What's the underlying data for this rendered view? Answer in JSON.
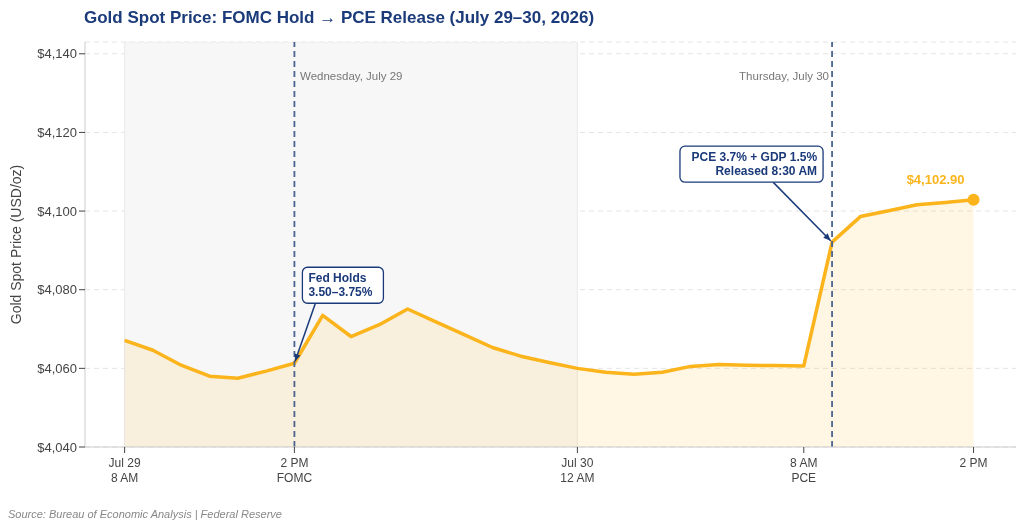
{
  "chart_data": {
    "type": "area",
    "title": "Gold Spot Price: FOMC Hold → PCE Release (July 29–30, 2026)",
    "ylabel": "Gold Spot Price (USD/oz)",
    "x": [
      "2026-07-29T08:00",
      "2026-07-29T09:00",
      "2026-07-29T10:00",
      "2026-07-29T11:00",
      "2026-07-29T12:00",
      "2026-07-29T13:00",
      "2026-07-29T14:00",
      "2026-07-29T15:00",
      "2026-07-29T16:00",
      "2026-07-29T17:00",
      "2026-07-29T18:00",
      "2026-07-29T19:00",
      "2026-07-29T20:00",
      "2026-07-29T21:00",
      "2026-07-29T22:00",
      "2026-07-29T23:00",
      "2026-07-30T00:00",
      "2026-07-30T01:00",
      "2026-07-30T02:00",
      "2026-07-30T03:00",
      "2026-07-30T04:00",
      "2026-07-30T05:00",
      "2026-07-30T06:00",
      "2026-07-30T07:00",
      "2026-07-30T08:00",
      "2026-07-30T09:00",
      "2026-07-30T10:00",
      "2026-07-30T11:00",
      "2026-07-30T12:00",
      "2026-07-30T13:00",
      "2026-07-30T14:00"
    ],
    "series": [
      {
        "color": "#fbb41c",
        "values": [
          4067.1,
          4064.6,
          4060.8,
          4058.0,
          4057.5,
          4059.3,
          4061.3,
          4073.5,
          4068.1,
          4071.1,
          4075.1,
          4071.8,
          4068.6,
          4065.3,
          4063.1,
          4061.5,
          4060.0,
          4059.0,
          4058.5,
          4059.0,
          4060.5,
          4061.0,
          4060.8,
          4060.7,
          4060.6,
          4092.1,
          4098.6,
          4100.1,
          4101.6,
          4102.2,
          4102.9
        ],
        "value_labels": [
          null,
          null,
          null,
          null,
          null,
          null,
          null,
          null,
          null,
          null,
          null,
          null,
          null,
          null,
          null,
          null,
          null,
          null,
          null,
          null,
          null,
          null,
          null,
          null,
          null,
          null,
          null,
          null,
          null,
          null,
          "$4,102.90"
        ]
      }
    ],
    "xlim": [
      "2026-07-29T06:36",
      "2026-07-30T15:30"
    ],
    "xticks": [
      {
        "value": "2026-07-29T08:00",
        "label": "Jul 29\n8 AM"
      },
      {
        "value": "2026-07-29T14:00",
        "label": "2 PM\nFOMC"
      },
      {
        "value": "2026-07-30T00:00",
        "label": "Jul 30\n12 AM"
      },
      {
        "value": "2026-07-30T08:00",
        "label": "8 AM\nPCE"
      },
      {
        "value": "2026-07-30T14:00",
        "label": "2 PM"
      }
    ],
    "ylim": [
      4040,
      4143
    ],
    "yticks": [
      {
        "value": 4040,
        "label": "$4,040"
      },
      {
        "value": 4060,
        "label": "$4,060"
      },
      {
        "value": 4080,
        "label": "$4,080"
      },
      {
        "value": 4100,
        "label": "$4,100"
      },
      {
        "value": 4120,
        "label": "$4,120"
      },
      {
        "value": 4140,
        "label": "$4,140"
      }
    ],
    "grid": "y",
    "marker": "none",
    "line_style": "solid",
    "legend": false,
    "ref_lines": [
      {
        "axis": "x",
        "value": "2026-07-29T14:00",
        "color": "#4a6490",
        "line_style": "dashed"
      },
      {
        "axis": "x",
        "value": "2026-07-30T09:00",
        "color": "#4a6490",
        "line_style": "dashed"
      }
    ],
    "bands": [
      {
        "axis": "x",
        "from": "2026-07-29T08:00",
        "to": "2026-07-30T00:00",
        "color": "#f7f7f7"
      }
    ],
    "annotations": [
      "Wednesday, July 29",
      "Thursday, July 30",
      {
        "text": "Fed Holds\n3.50–3.75%",
        "x": "2026-07-29T14:00",
        "y": 4061.3
      },
      {
        "text": "PCE 3.7% + GDP 1.5%\nReleased 8:30 AM",
        "x": "2026-07-30T09:00",
        "y": 4092.1
      },
      "Source: Bureau of Economic Analysis | Federal Reserve"
    ]
  }
}
